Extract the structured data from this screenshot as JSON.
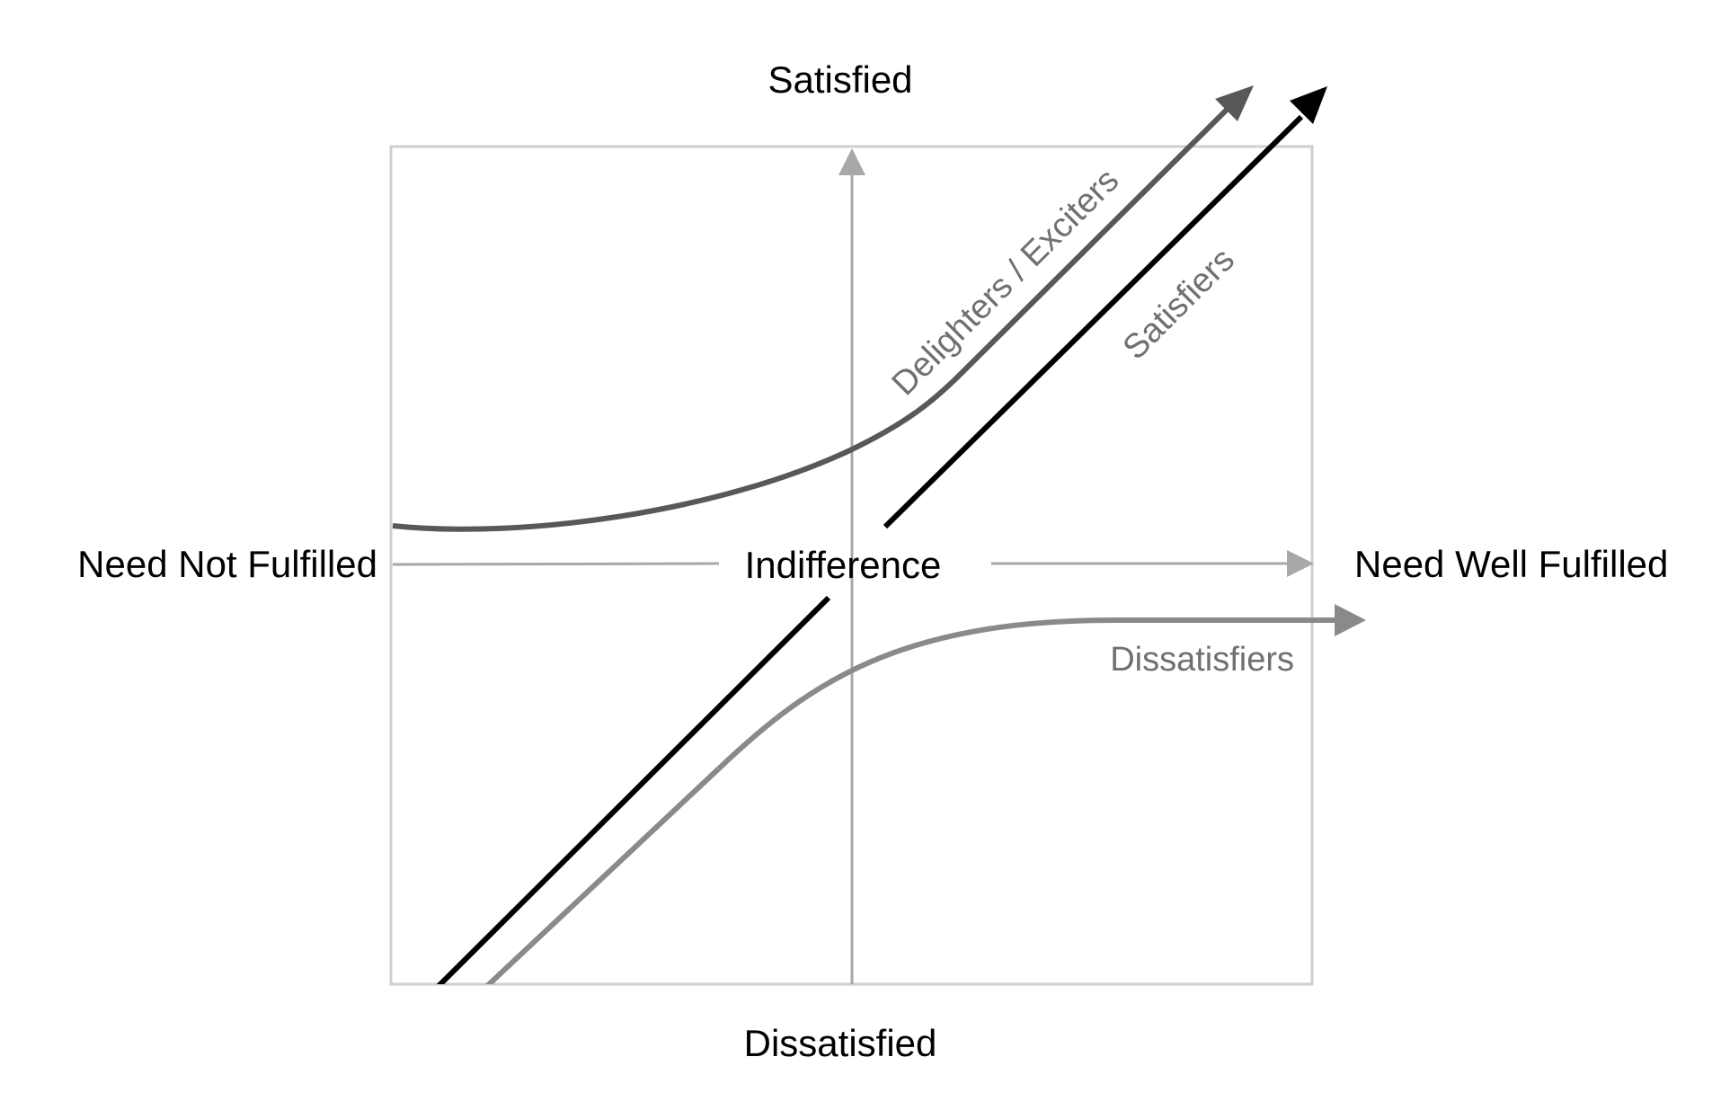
{
  "labels": {
    "top": "Satisfied",
    "bottom": "Dissatisfied",
    "left": "Need Not Fulfilled",
    "right": "Need Well Fulfilled",
    "center": "Indifference"
  },
  "curves": {
    "delighters": {
      "label": "Delighters / Exciters",
      "color": "#58585a"
    },
    "satisfiers": {
      "label": "Satisfiers",
      "color": "#000000",
      "label_color": "#707072"
    },
    "dissatisfiers": {
      "label": "Dissatisfiers",
      "color": "#8a8a8c",
      "label_color": "#707072"
    }
  },
  "colors": {
    "frame": "#cfcfcf",
    "axis": "#a8a8aa",
    "text": "#000000"
  }
}
